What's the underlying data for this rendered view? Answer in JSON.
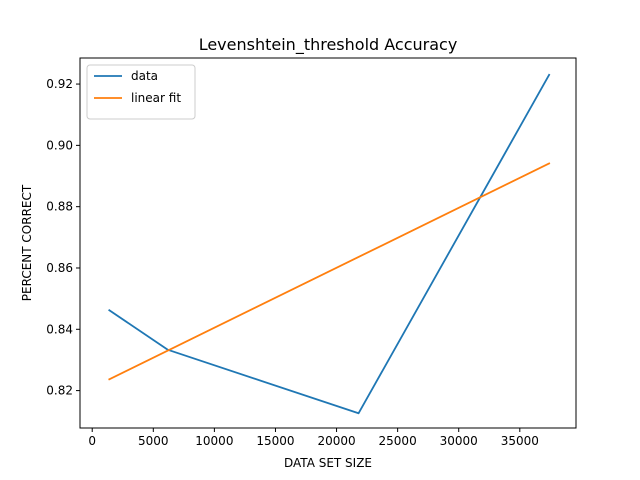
{
  "chart_data": {
    "type": "line",
    "title": "Levenshtein_threshold Accuracy",
    "xlabel": "DATA SET SIZE",
    "ylabel": "PERCENT CORRECT",
    "xlim": [
      -1000,
      39600
    ],
    "ylim": [
      0.8078,
      0.9285
    ],
    "xticks": [
      0,
      5000,
      10000,
      15000,
      20000,
      25000,
      30000,
      35000
    ],
    "xtick_labels": [
      "0",
      "5000",
      "10000",
      "15000",
      "20000",
      "25000",
      "30000",
      "35000"
    ],
    "yticks": [
      0.82,
      0.84,
      0.86,
      0.88,
      0.9,
      0.92
    ],
    "ytick_labels": [
      "0.82",
      "0.84",
      "0.86",
      "0.88",
      "0.90",
      "0.92"
    ],
    "grid": false,
    "legend_position": "upper left",
    "series": [
      {
        "name": "data",
        "color": "#1f77b4",
        "x": [
          1400,
          6200,
          21800,
          37400
        ],
        "y": [
          0.8462,
          0.8333,
          0.8126,
          0.923
        ]
      },
      {
        "name": "linear fit",
        "color": "#ff7f0e",
        "x": [
          1400,
          37400
        ],
        "y": [
          0.8237,
          0.8941
        ]
      }
    ]
  }
}
